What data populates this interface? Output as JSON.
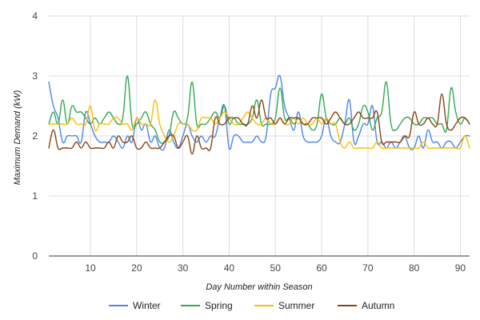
{
  "chart_data": {
    "type": "line",
    "xlabel": "Day Number within Season",
    "ylabel": "Maximum Demand (kW)",
    "xlim": [
      1,
      92
    ],
    "ylim": [
      0,
      4
    ],
    "x_ticks": [
      10,
      20,
      30,
      40,
      50,
      60,
      70,
      80,
      90
    ],
    "y_ticks": [
      0,
      1,
      2,
      3,
      4
    ],
    "grid": true,
    "legend_position": "bottom",
    "x": [
      1,
      2,
      3,
      4,
      5,
      6,
      7,
      8,
      9,
      10,
      11,
      12,
      13,
      14,
      15,
      16,
      17,
      18,
      19,
      20,
      21,
      22,
      23,
      24,
      25,
      26,
      27,
      28,
      29,
      30,
      31,
      32,
      33,
      34,
      35,
      36,
      37,
      38,
      39,
      40,
      41,
      42,
      43,
      44,
      45,
      46,
      47,
      48,
      49,
      50,
      51,
      52,
      53,
      54,
      55,
      56,
      57,
      58,
      59,
      60,
      61,
      62,
      63,
      64,
      65,
      66,
      67,
      68,
      69,
      70,
      71,
      72,
      73,
      74,
      75,
      76,
      77,
      78,
      79,
      80,
      81,
      82,
      83,
      84,
      85,
      86,
      87,
      88,
      89,
      90,
      91,
      92
    ],
    "series": [
      {
        "name": "Winter",
        "color": "#4a86e8",
        "values": [
          2.9,
          2.5,
          2.3,
          1.9,
          2.0,
          2.0,
          2.0,
          1.9,
          2.4,
          2.2,
          2.0,
          1.9,
          1.9,
          1.9,
          2.0,
          1.9,
          1.8,
          2.0,
          1.9,
          2.3,
          2.1,
          2.2,
          1.9,
          2.0,
          1.8,
          1.8,
          2.1,
          1.9,
          1.8,
          2.0,
          2.2,
          2.0,
          1.9,
          2.0,
          1.9,
          2.0,
          2.0,
          2.3,
          2.5,
          1.8,
          2.0,
          2.0,
          1.9,
          1.9,
          1.9,
          2.0,
          1.9,
          2.0,
          2.7,
          2.8,
          3.0,
          2.5,
          2.3,
          2.1,
          2.4,
          2.0,
          1.9,
          1.9,
          1.9,
          2.0,
          2.3,
          2.0,
          1.9,
          1.9,
          2.2,
          2.6,
          1.9,
          2.0,
          2.2,
          2.2,
          2.5,
          1.9,
          1.9,
          1.8,
          1.9,
          1.8,
          1.9,
          2.0,
          1.8,
          1.8,
          2.0,
          1.8,
          2.1,
          1.9,
          1.9,
          1.8,
          1.9,
          1.9,
          1.8,
          1.9,
          2.0,
          2.0
        ]
      },
      {
        "name": "Spring",
        "color": "#34a853",
        "values": [
          2.2,
          2.4,
          2.2,
          2.6,
          2.2,
          2.5,
          2.4,
          2.4,
          2.3,
          2.2,
          2.3,
          2.2,
          2.3,
          2.4,
          2.3,
          2.2,
          2.3,
          3.0,
          2.2,
          2.2,
          2.3,
          2.4,
          2.2,
          2.1,
          1.9,
          1.9,
          2.0,
          2.4,
          2.3,
          2.2,
          2.3,
          2.9,
          2.2,
          2.2,
          2.2,
          2.3,
          2.4,
          2.3,
          2.5,
          2.2,
          2.3,
          2.2,
          2.2,
          2.2,
          2.3,
          2.6,
          2.2,
          2.2,
          2.2,
          2.3,
          2.8,
          2.3,
          2.3,
          2.2,
          2.3,
          2.2,
          2.2,
          2.1,
          2.2,
          2.7,
          2.3,
          2.2,
          2.2,
          2.3,
          2.2,
          2.3,
          2.1,
          2.2,
          2.5,
          2.4,
          2.1,
          2.3,
          2.4,
          2.9,
          2.2,
          2.1,
          2.2,
          2.3,
          2.3,
          2.2,
          2.2,
          2.3,
          2.3,
          2.3,
          2.2,
          2.2,
          2.1,
          2.8,
          2.4,
          2.2,
          2.3,
          2.2
        ]
      },
      {
        "name": "Summer",
        "color": "#fbbc04",
        "values": [
          2.2,
          2.2,
          2.2,
          2.2,
          2.2,
          2.3,
          2.2,
          2.2,
          2.2,
          2.5,
          2.1,
          2.2,
          2.2,
          2.2,
          2.3,
          2.3,
          2.2,
          2.2,
          2.1,
          2.3,
          2.2,
          2.2,
          2.2,
          2.6,
          2.2,
          2.0,
          1.9,
          2.0,
          2.2,
          2.2,
          2.2,
          2.1,
          2.1,
          2.3,
          2.3,
          2.3,
          2.2,
          2.3,
          2.4,
          2.3,
          2.2,
          2.2,
          2.3,
          2.4,
          2.3,
          2.2,
          2.2,
          2.3,
          2.2,
          2.2,
          2.3,
          2.2,
          2.2,
          2.3,
          2.2,
          2.3,
          2.2,
          2.2,
          2.3,
          2.2,
          2.3,
          2.2,
          2.2,
          1.9,
          1.8,
          1.9,
          1.8,
          1.8,
          1.8,
          1.8,
          1.8,
          1.9,
          1.8,
          1.8,
          1.8,
          1.8,
          1.8,
          1.8,
          1.8,
          1.8,
          1.8,
          1.9,
          1.8,
          1.8,
          1.8,
          1.8,
          1.8,
          1.8,
          1.8,
          1.8,
          2.0,
          1.8
        ]
      },
      {
        "name": "Autumn",
        "color": "#8b4513",
        "values": [
          1.8,
          2.1,
          1.8,
          1.8,
          1.8,
          1.8,
          1.9,
          1.8,
          1.9,
          1.8,
          1.8,
          1.8,
          1.8,
          1.9,
          1.8,
          2.0,
          1.9,
          1.9,
          2.0,
          1.8,
          1.8,
          1.9,
          1.8,
          1.8,
          1.8,
          1.9,
          2.0,
          2.0,
          1.8,
          1.9,
          2.0,
          1.7,
          2.0,
          1.8,
          1.8,
          1.8,
          2.3,
          2.2,
          2.2,
          2.3,
          2.3,
          2.3,
          2.2,
          2.2,
          2.5,
          2.3,
          2.6,
          2.3,
          2.3,
          2.2,
          2.3,
          2.2,
          2.3,
          2.3,
          2.3,
          2.2,
          2.2,
          2.3,
          2.3,
          2.3,
          2.2,
          2.3,
          2.4,
          2.3,
          2.2,
          2.2,
          2.3,
          2.4,
          2.3,
          2.3,
          2.3,
          2.4,
          1.9,
          1.9,
          1.9,
          1.9,
          1.9,
          2.0,
          2.0,
          2.4,
          2.2,
          2.2,
          2.3,
          2.2,
          2.2,
          2.7,
          2.2,
          2.1,
          2.2,
          2.3,
          2.3,
          2.2
        ]
      }
    ]
  }
}
